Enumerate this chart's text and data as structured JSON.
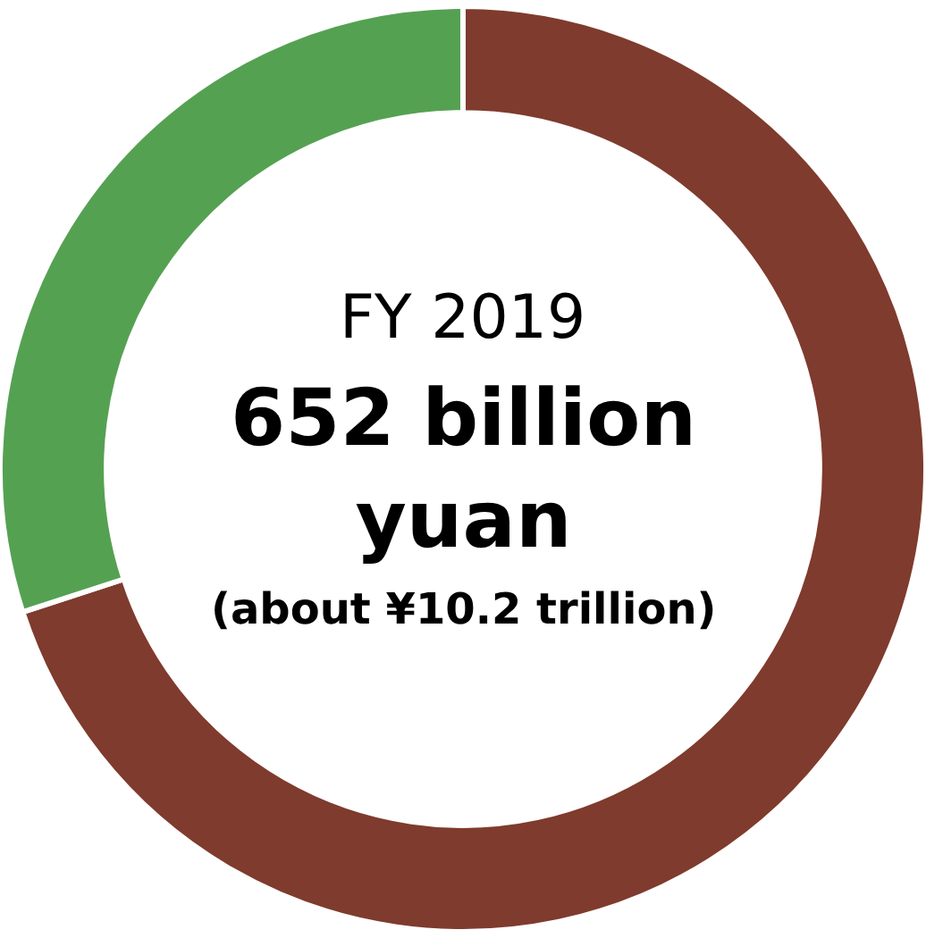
{
  "chart_data": {
    "type": "donut",
    "categories": [
      null,
      null
    ],
    "values": [
      70,
      30
    ],
    "colors": [
      "#7f3b2d",
      "#55a152"
    ],
    "annotations": [
      "FY 2019",
      "652 billion yuan",
      "(about ¥10.2 trillion)"
    ]
  }
}
